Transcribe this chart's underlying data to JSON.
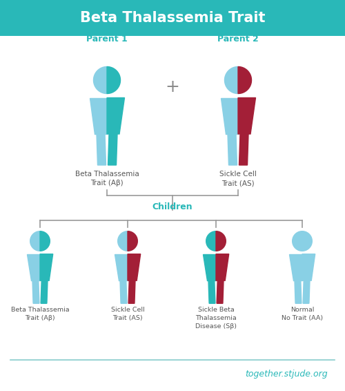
{
  "title": "Beta Thalassemia Trait",
  "title_bg": "#29b8b8",
  "title_color": "#ffffff",
  "title_fontsize": 15,
  "bg_color": "#ffffff",
  "teal": "#29b8b8",
  "light_blue": "#89d0e5",
  "dark_red": "#a31f37",
  "gray_text": "#555555",
  "parent1_label": "Parent 1",
  "parent2_label": "Parent 2",
  "children_label": "Children",
  "parent1_desc": "Beta Thalassemia\nTrait (Aβ)",
  "parent2_desc": "Sickle Cell\nTrait (AS)",
  "child1_desc": "Beta Thalassemia\nTrait (Aβ)",
  "child2_desc": "Sickle Cell\nTrait (AS)",
  "child3_desc": "Sickle Beta\nThalassemia\nDisease (Sβ)",
  "child4_desc": "Normal\nNo Trait (AA)",
  "footer_text": "together.stjude.org",
  "footer_color": "#29b8b8",
  "line_color": "#999999",
  "separator_color": "#88cccc",
  "plus_color": "#888888"
}
